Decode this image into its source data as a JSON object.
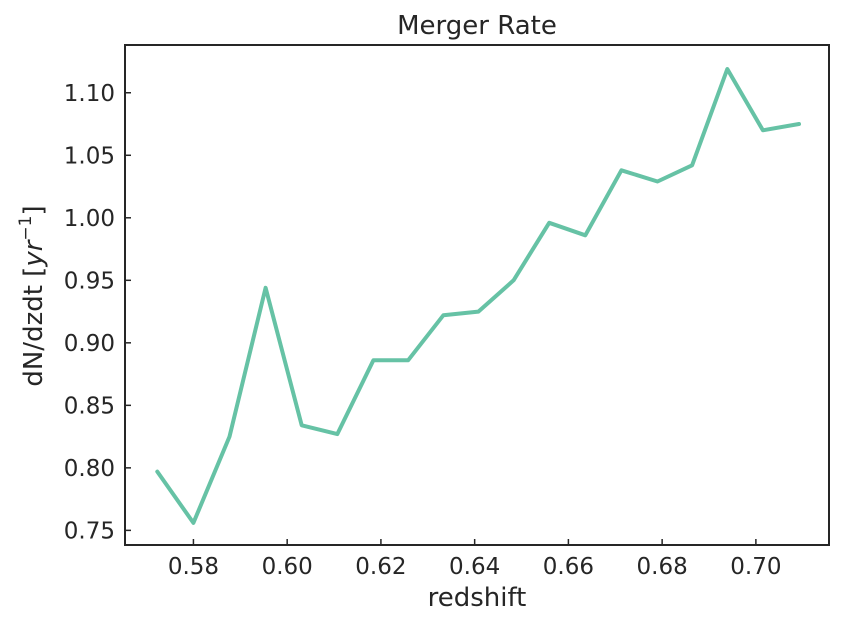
{
  "chart_data": {
    "type": "line",
    "title": "Merger Rate",
    "xlabel": "redshift",
    "ylabel_prefix": "dN/dzdt [",
    "ylabel_unit": "yr",
    "ylabel_exp": "−1",
    "ylabel_suffix": "]",
    "xlim": [
      0.5654,
      0.7156
    ],
    "ylim": [
      0.7383,
      1.1382
    ],
    "xticks": [
      0.58,
      0.6,
      0.62,
      0.64,
      0.66,
      0.68,
      0.7
    ],
    "xtick_labels": [
      "0.58",
      "0.60",
      "0.62",
      "0.64",
      "0.66",
      "0.68",
      "0.70"
    ],
    "yticks": [
      0.75,
      0.8,
      0.85,
      0.9,
      0.95,
      1.0,
      1.05,
      1.1
    ],
    "ytick_labels": [
      "0.75",
      "0.80",
      "0.85",
      "0.90",
      "0.95",
      "1.00",
      "1.05",
      "1.10"
    ],
    "grid": false,
    "line_color": "#66c2a5",
    "series": [
      {
        "x": [
          0.5723,
          0.58,
          0.5877,
          0.5954,
          0.6031,
          0.6107,
          0.6184,
          0.6258,
          0.6333,
          0.6408,
          0.6483,
          0.6559,
          0.6636,
          0.6713,
          0.679,
          0.6864,
          0.6939,
          0.7015,
          0.7092
        ],
        "y": [
          0.797,
          0.756,
          0.825,
          0.944,
          0.834,
          0.827,
          0.886,
          0.886,
          0.922,
          0.925,
          0.95,
          0.996,
          0.986,
          1.038,
          1.029,
          1.042,
          1.119,
          1.07,
          1.075
        ]
      }
    ]
  }
}
